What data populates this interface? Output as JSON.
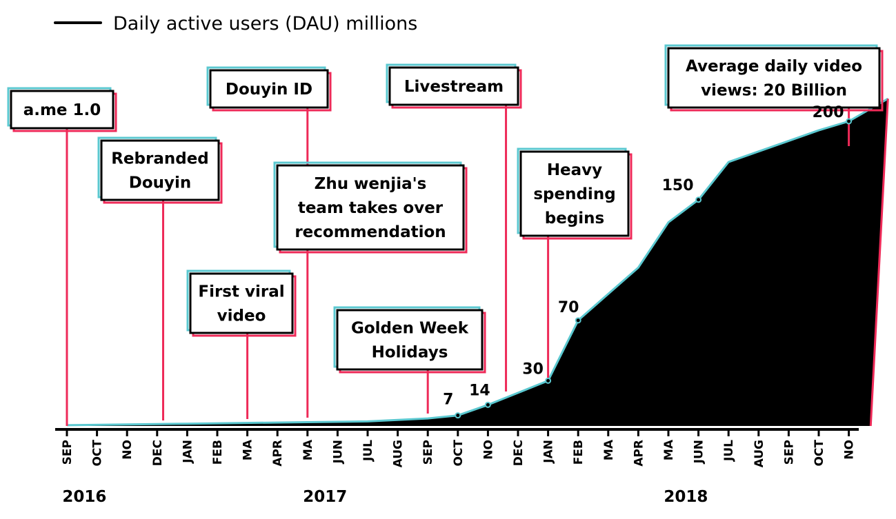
{
  "colors": {
    "area_fill": "#000000",
    "area_outline": "#5bc8d0",
    "annotation_line": "#ee2a58",
    "box_shadow_cyan": "#5bc8d0",
    "box_shadow_pink": "#ee2a58"
  },
  "chart_data": {
    "type": "area",
    "title": "",
    "xlabel": "",
    "ylabel": "",
    "legend": {
      "label": "Daily active users (DAU) millions",
      "placement": "top-left"
    },
    "grid": false,
    "x_ticks": [
      "SEP",
      "OCT",
      "NO",
      "DEC",
      "JAN",
      "FEB",
      "MA",
      "APR",
      "MA",
      "JUN",
      "JUL",
      "AUG",
      "SEP",
      "OCT",
      "NO",
      "DEC",
      "JAN",
      "FEB",
      "MA",
      "APR",
      "MA",
      "JUN",
      "JUL",
      "AUG",
      "SEP",
      "OCT",
      "NO"
    ],
    "years": [
      {
        "label": "2016",
        "at": 1.5
      },
      {
        "label": "2017",
        "at": 9.5
      },
      {
        "label": "2018",
        "at": 21.5
      }
    ],
    "ylim": [
      0,
      255
    ],
    "series": [
      {
        "name": "Daily active users (DAU) millions",
        "points": [
          {
            "x": 0,
            "y": 0.5
          },
          {
            "x": 4,
            "y": 1.5
          },
          {
            "x": 8,
            "y": 2.5
          },
          {
            "x": 10,
            "y": 3
          },
          {
            "x": 12,
            "y": 5
          },
          {
            "x": 13,
            "y": 7
          },
          {
            "x": 14,
            "y": 14
          },
          {
            "x": 16,
            "y": 30
          },
          {
            "x": 17,
            "y": 70
          },
          {
            "x": 19,
            "y": 105
          },
          {
            "x": 20,
            "y": 135
          },
          {
            "x": 21,
            "y": 150
          },
          {
            "x": 22,
            "y": 175
          },
          {
            "x": 24,
            "y": 189
          },
          {
            "x": 25,
            "y": 196
          },
          {
            "x": 26,
            "y": 202
          },
          {
            "x": 27.3,
            "y": 217
          }
        ]
      }
    ],
    "value_labels": [
      {
        "text": "7",
        "x": 13,
        "y": 7
      },
      {
        "text": "14",
        "x": 14,
        "y": 14
      },
      {
        "text": "30",
        "x": 16,
        "y": 30
      },
      {
        "text": "70",
        "x": 17,
        "y": 70
      },
      {
        "text": "150",
        "x": 21,
        "y": 150
      },
      {
        "text": "200",
        "x": 26,
        "y": 202
      }
    ],
    "annotations": [
      {
        "lines": [
          "a.me 1.0"
        ],
        "x": 0
      },
      {
        "lines": [
          "Rebranded",
          "Douyin"
        ],
        "x": 3.2
      },
      {
        "lines": [
          "First viral",
          "video"
        ],
        "x": 6
      },
      {
        "lines": [
          "Douyin ID"
        ],
        "x": 8
      },
      {
        "lines": [
          "Zhu wenjia's",
          "team takes over",
          "recommendation"
        ],
        "x": 8
      },
      {
        "lines": [
          "Golden Week",
          "Holidays"
        ],
        "x": 12
      },
      {
        "lines": [
          "Livestream"
        ],
        "x": 14.6
      },
      {
        "lines": [
          "Heavy",
          "spending",
          "begins"
        ],
        "x": 16
      },
      {
        "lines": [
          "Average daily video",
          "views: 20 Billion"
        ],
        "x": 26
      }
    ]
  }
}
